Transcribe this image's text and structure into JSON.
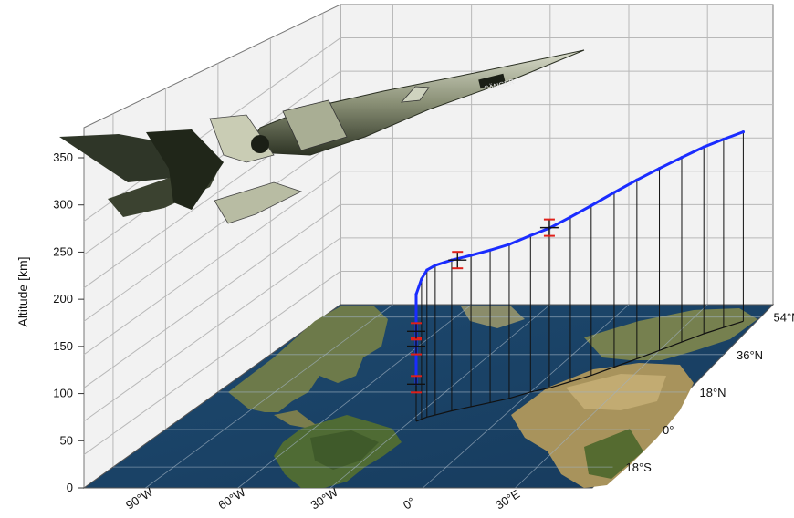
{
  "chart_data": {
    "type": "line",
    "projection": "3d",
    "ylabel": "Altitude [km]",
    "ylim": [
      0,
      370
    ],
    "yticks": [
      0,
      50,
      100,
      150,
      200,
      250,
      300,
      350
    ],
    "lon_ticks": [
      "90°W",
      "60°W",
      "30°W",
      "0°",
      "30°E"
    ],
    "lat_ticks": [
      "18°S",
      "0°",
      "18°N",
      "36°N",
      "54°N"
    ],
    "grid": true,
    "base_map": "world-satellite",
    "series": [
      {
        "color": "#1a2cff",
        "points": [
          {
            "lon": -28,
            "lat": 4,
            "alt": 70
          },
          {
            "lon": -28,
            "lat": 4,
            "alt": 110
          },
          {
            "lon": -28,
            "lat": 4,
            "alt": 150
          },
          {
            "lon": -28,
            "lat": 4,
            "alt": 200
          },
          {
            "lon": -28,
            "lat": 4,
            "alt": 240
          },
          {
            "lon": -27,
            "lat": 5,
            "alt": 265
          },
          {
            "lon": -26,
            "lat": 6,
            "alt": 278
          },
          {
            "lon": -24,
            "lat": 7,
            "alt": 283
          },
          {
            "lon": -20,
            "lat": 9,
            "alt": 285
          },
          {
            "lon": -15,
            "lat": 11,
            "alt": 286
          },
          {
            "lon": -10,
            "lat": 13,
            "alt": 288
          },
          {
            "lon": -5,
            "lat": 15,
            "alt": 291
          },
          {
            "lon": 0,
            "lat": 18,
            "alt": 296
          },
          {
            "lon": 5,
            "lat": 20,
            "alt": 302
          },
          {
            "lon": 10,
            "lat": 23,
            "alt": 311
          },
          {
            "lon": 15,
            "lat": 26,
            "alt": 321
          },
          {
            "lon": 20,
            "lat": 30,
            "alt": 330
          },
          {
            "lon": 25,
            "lat": 34,
            "alt": 338
          },
          {
            "lon": 30,
            "lat": 38,
            "alt": 344
          },
          {
            "lon": 35,
            "lat": 42,
            "alt": 349
          },
          {
            "lon": 40,
            "lat": 46,
            "alt": 353
          },
          {
            "lon": 45,
            "lat": 49,
            "alt": 356
          },
          {
            "lon": 50,
            "lat": 52,
            "alt": 358
          }
        ]
      }
    ],
    "error_bars": [
      {
        "lon": -28,
        "lat": 4,
        "alt": 70
      },
      {
        "lon": -28,
        "lat": 4,
        "alt": 142
      },
      {
        "lon": -28,
        "lat": 4,
        "alt": 170
      },
      {
        "lon": -18,
        "lat": 9,
        "alt": 285
      },
      {
        "lon": 5,
        "lat": 20,
        "alt": 303
      }
    ]
  },
  "colors": {
    "trajectory": "#1a2cff",
    "errorbar": "#e0201a",
    "grid": "#b8b8b8",
    "wall": "#f2f2f2"
  },
  "decor": {
    "aircraft_icon": "spaceplane-icon",
    "aircraft_text": "SÄNGER"
  }
}
